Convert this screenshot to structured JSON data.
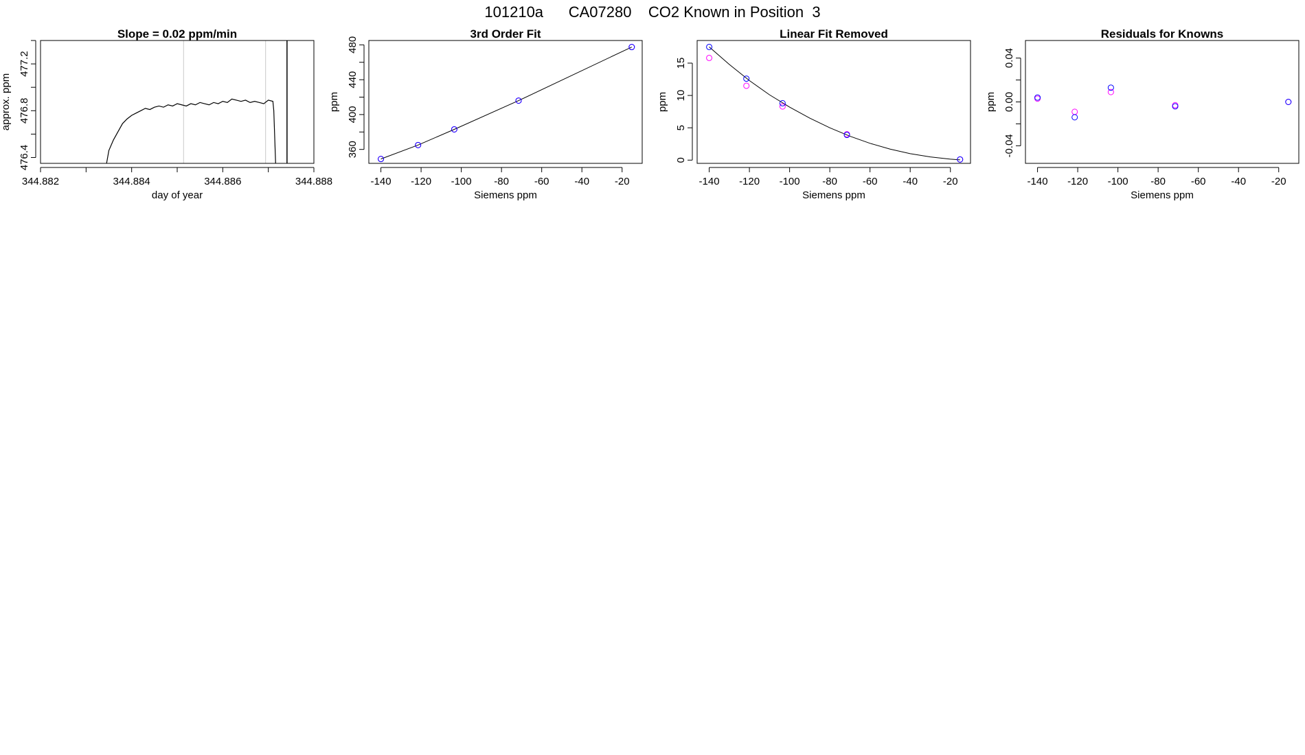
{
  "figure": {
    "title": "101210a      CA07280    CO2 Known in Position  3"
  },
  "colors": {
    "background": "#ffffff",
    "axis": "#000000",
    "line": "#000000",
    "gridline": "#c8c8c8",
    "series_blue": "#0000ff",
    "series_magenta": "#ff00ff"
  },
  "chart_data": [
    {
      "type": "line",
      "title": "Slope =  0.02  ppm/min",
      "xlabel": "day of year",
      "ylabel": "approx. ppm",
      "xlim": [
        344.882,
        344.888
      ],
      "ylim": [
        476.35,
        477.4
      ],
      "xticks": [
        344.882,
        344.883,
        344.884,
        344.885,
        344.886,
        344.887,
        344.888
      ],
      "xtick_labels": [
        "344.882",
        "",
        "344.884",
        "",
        "344.886",
        "",
        "344.888"
      ],
      "yticks": [
        476.4,
        476.6,
        476.8,
        477.0,
        477.2,
        477.4
      ],
      "ytick_labels": [
        "476.4",
        "",
        "476.8",
        "",
        "477.2",
        ""
      ],
      "vlines_gray": [
        344.88514,
        344.88694
      ],
      "vlines_black": [
        344.88741
      ],
      "series": [
        {
          "color": "black",
          "x": [
            344.88345,
            344.8835,
            344.8836,
            344.8837,
            344.8838,
            344.8839,
            344.884,
            344.8841,
            344.8842,
            344.8843,
            344.8844,
            344.8845,
            344.8846,
            344.8847,
            344.8848,
            344.8849,
            344.885,
            344.8851,
            344.8852,
            344.8853,
            344.8854,
            344.8855,
            344.8856,
            344.8857,
            344.8858,
            344.8859,
            344.886,
            344.8861,
            344.8862,
            344.8863,
            344.8864,
            344.8865,
            344.8866,
            344.8867,
            344.8868,
            344.8869,
            344.887,
            344.8871,
            344.88712,
            344.88716
          ],
          "values": [
            476.35,
            476.46,
            476.55,
            476.62,
            476.69,
            476.73,
            476.76,
            476.78,
            476.8,
            476.82,
            476.81,
            476.83,
            476.84,
            476.83,
            476.85,
            476.84,
            476.86,
            476.85,
            476.84,
            476.86,
            476.85,
            476.87,
            476.86,
            476.85,
            476.87,
            476.86,
            476.88,
            476.87,
            476.9,
            476.89,
            476.88,
            476.89,
            476.87,
            476.88,
            476.87,
            476.86,
            476.89,
            476.88,
            476.8,
            476.35
          ]
        }
      ]
    },
    {
      "type": "scatter",
      "title": "3rd Order Fit",
      "xlabel": "Siemens ppm",
      "ylabel": "ppm",
      "xlim": [
        -146,
        -10
      ],
      "ylim": [
        344,
        485
      ],
      "xticks": [
        -140,
        -120,
        -100,
        -80,
        -60,
        -40,
        -20
      ],
      "yticks": [
        360,
        380,
        400,
        420,
        440,
        460,
        480
      ],
      "ytick_labels": [
        "360",
        "",
        "400",
        "",
        "440",
        "",
        "480"
      ],
      "series": [
        {
          "color": "magenta",
          "x": [
            -140,
            -121.5,
            -103.5,
            -71.5,
            -15.2
          ],
          "values": [
            349,
            365,
            383,
            416,
            477.5
          ]
        },
        {
          "color": "blue",
          "x": [
            -140,
            -121.5,
            -103.5,
            -71.5,
            -15.2
          ],
          "values": [
            349,
            365,
            383,
            416,
            477.5
          ]
        }
      ],
      "fit_curve": {
        "color": "black",
        "x": [
          -140,
          -121.5,
          -103.5,
          -71.5,
          -15.2
        ],
        "values": [
          349,
          365,
          383,
          416,
          477.5
        ]
      }
    },
    {
      "type": "scatter",
      "title": "Linear Fit Removed",
      "xlabel": "Siemens ppm",
      "ylabel": "ppm",
      "xlim": [
        -146,
        -10
      ],
      "ylim": [
        -0.5,
        18.5
      ],
      "xticks": [
        -140,
        -120,
        -100,
        -80,
        -60,
        -40,
        -20
      ],
      "yticks": [
        0,
        5,
        10,
        15
      ],
      "series": [
        {
          "color": "magenta",
          "x": [
            -140,
            -121.5,
            -103.5,
            -71.5,
            -15.2
          ],
          "values": [
            15.8,
            11.5,
            8.3,
            4.0,
            0.1
          ]
        },
        {
          "color": "blue",
          "x": [
            -140,
            -121.5,
            -103.5,
            -71.5,
            -15.2
          ],
          "values": [
            17.5,
            12.6,
            8.8,
            3.9,
            0.1
          ]
        }
      ],
      "fit_curve": {
        "color": "black",
        "x": [
          -140,
          -130,
          -120,
          -110,
          -100,
          -90,
          -80,
          -70,
          -60,
          -50,
          -40,
          -30,
          -20,
          -15.2
        ],
        "values": [
          17.5,
          14.8,
          12.3,
          10.1,
          8.2,
          6.5,
          5.0,
          3.7,
          2.6,
          1.7,
          1.0,
          0.5,
          0.15,
          0.05
        ]
      }
    },
    {
      "type": "scatter",
      "title": "Residuals for Knowns",
      "xlabel": "Siemens ppm",
      "ylabel": "ppm",
      "xlim": [
        -146,
        -10
      ],
      "ylim": [
        -0.056,
        0.056
      ],
      "xticks": [
        -140,
        -120,
        -100,
        -80,
        -60,
        -40,
        -20
      ],
      "yticks": [
        -0.04,
        -0.02,
        0.0,
        0.02,
        0.04
      ],
      "ytick_labels": [
        "-0.04",
        "",
        "0.00",
        "",
        "0.04"
      ],
      "series": [
        {
          "color": "magenta",
          "x": [
            -140,
            -121.5,
            -103.5,
            -71.5,
            -15.2
          ],
          "values": [
            0.003,
            -0.009,
            0.009,
            -0.003,
            0.0
          ]
        },
        {
          "color": "blue",
          "x": [
            -140,
            -121.5,
            -103.5,
            -71.5,
            -15.2
          ],
          "values": [
            0.004,
            -0.014,
            0.013,
            -0.004,
            0.0
          ]
        }
      ]
    }
  ]
}
